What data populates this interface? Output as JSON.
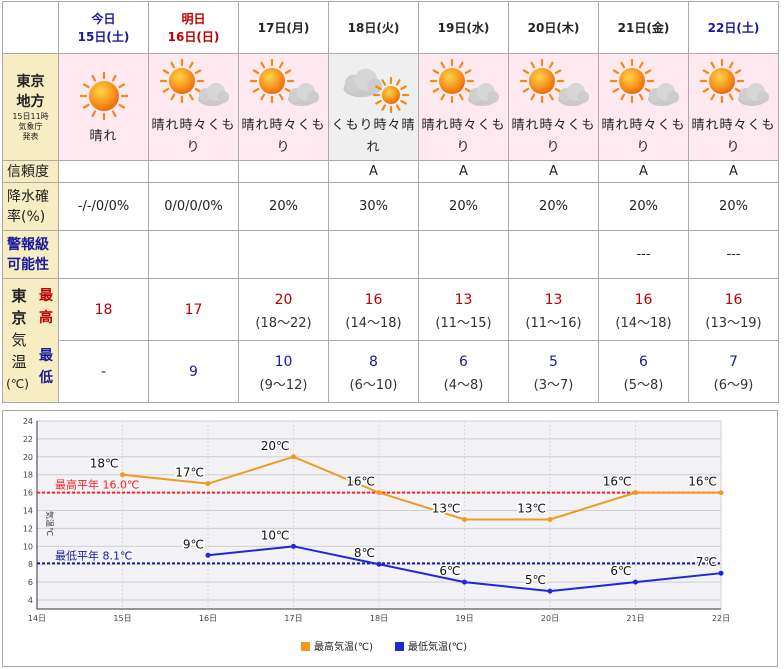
{
  "table": {
    "days": [
      {
        "day": "今日",
        "date": "15日(土)",
        "style": "blue"
      },
      {
        "day": "明日",
        "date": "16日(日)",
        "style": "red"
      },
      {
        "day": "",
        "date": "17日(月)",
        "style": "plain"
      },
      {
        "day": "",
        "date": "18日(火)",
        "style": "plain"
      },
      {
        "day": "",
        "date": "19日(水)",
        "style": "plain"
      },
      {
        "day": "",
        "date": "20日(木)",
        "style": "plain"
      },
      {
        "day": "",
        "date": "21日(金)",
        "style": "plain"
      },
      {
        "day": "",
        "date": "22日(土)",
        "style": "blue"
      }
    ],
    "region": {
      "name1": "東京",
      "name2": "地方",
      "note1": "15日11時",
      "note2": "気象庁",
      "note3": "発表"
    },
    "weather": [
      {
        "icon": "sun-icon",
        "label": "晴れ"
      },
      {
        "icon": "sun-cloud-icon",
        "label": "晴れ時々くもり"
      },
      {
        "icon": "sun-cloud-icon",
        "label": "晴れ時々くもり"
      },
      {
        "icon": "cloud-sun-icon",
        "label": "くもり時々晴れ"
      },
      {
        "icon": "sun-cloud-icon",
        "label": "晴れ時々くもり"
      },
      {
        "icon": "sun-cloud-icon",
        "label": "晴れ時々くもり"
      },
      {
        "icon": "sun-cloud-icon",
        "label": "晴れ時々くもり"
      },
      {
        "icon": "sun-cloud-icon",
        "label": "晴れ時々くもり"
      }
    ],
    "reliability_label": "信頼度",
    "reliability": [
      "",
      "",
      "",
      "A",
      "A",
      "A",
      "A",
      "A"
    ],
    "pop_label1": "降水確",
    "pop_label2": "率(%)",
    "pop": [
      "-/-/0/0%",
      "0/0/0/0%",
      "20%",
      "30%",
      "20%",
      "20%",
      "20%",
      "20%"
    ],
    "warning_label1": "警報級",
    "warning_label2": "可能性",
    "warning": [
      "",
      "",
      "",
      "",
      "",
      "",
      "---",
      "---"
    ],
    "temp_side": {
      "c1": "東",
      "c2": "京",
      "c3": "気",
      "c4": "温",
      "c5": "(℃)",
      "max1": "最",
      "max2": "高",
      "min1": "最",
      "min2": "低"
    },
    "max_values": [
      "18",
      "17",
      "20",
      "16",
      "13",
      "13",
      "16",
      "16"
    ],
    "max_ranges": [
      "",
      "",
      "(18〜22)",
      "(14〜18)",
      "(11〜15)",
      "(11〜16)",
      "(14〜18)",
      "(13〜19)"
    ],
    "min_values": [
      "-",
      "9",
      "10",
      "8",
      "6",
      "5",
      "6",
      "7"
    ],
    "min_ranges": [
      "",
      "",
      "(9〜12)",
      "(6〜10)",
      "(4〜8)",
      "(3〜7)",
      "(5〜8)",
      "(6〜9)"
    ]
  },
  "colors": {
    "max": "#f29a1e",
    "min": "#1f27d6",
    "max_avg": "#ff2222",
    "min_avg": "#1a1a9b",
    "sunny_bg": "#fde9ef",
    "side_bg": "#f6edc3"
  },
  "chart_data": {
    "type": "line",
    "ylabel": "気温℃",
    "x_ticks": [
      "14日",
      "15日",
      "16日",
      "17日",
      "18日",
      "19日",
      "20日",
      "21日",
      "22日"
    ],
    "ylim": [
      3,
      24
    ],
    "y_ticks": [
      4,
      6,
      8,
      10,
      12,
      14,
      16,
      18,
      20,
      22,
      24
    ],
    "grid": true,
    "legend_position": "bottom",
    "series": [
      {
        "name": "最高気温(℃)",
        "x": [
          15,
          16,
          17,
          18,
          19,
          20,
          21,
          22
        ],
        "values": [
          18,
          17,
          20,
          16,
          13,
          13,
          16,
          16
        ],
        "labels": [
          "18℃",
          "17℃",
          "20℃",
          "16℃",
          "13℃",
          "13℃",
          "16℃",
          "16℃"
        ]
      },
      {
        "name": "最低気温(℃)",
        "x": [
          16,
          17,
          18,
          19,
          20,
          21,
          22
        ],
        "values": [
          9,
          10,
          8,
          6,
          5,
          6,
          7
        ],
        "labels": [
          "9℃",
          "10℃",
          "8℃",
          "6℃",
          "5℃",
          "6℃",
          "7℃"
        ]
      }
    ],
    "reference_lines": [
      {
        "name": "最高平年",
        "value": 16.0,
        "label": "最高平年 16.0℃"
      },
      {
        "name": "最低平年",
        "value": 8.1,
        "label": "最低平年 8.1℃"
      }
    ]
  }
}
